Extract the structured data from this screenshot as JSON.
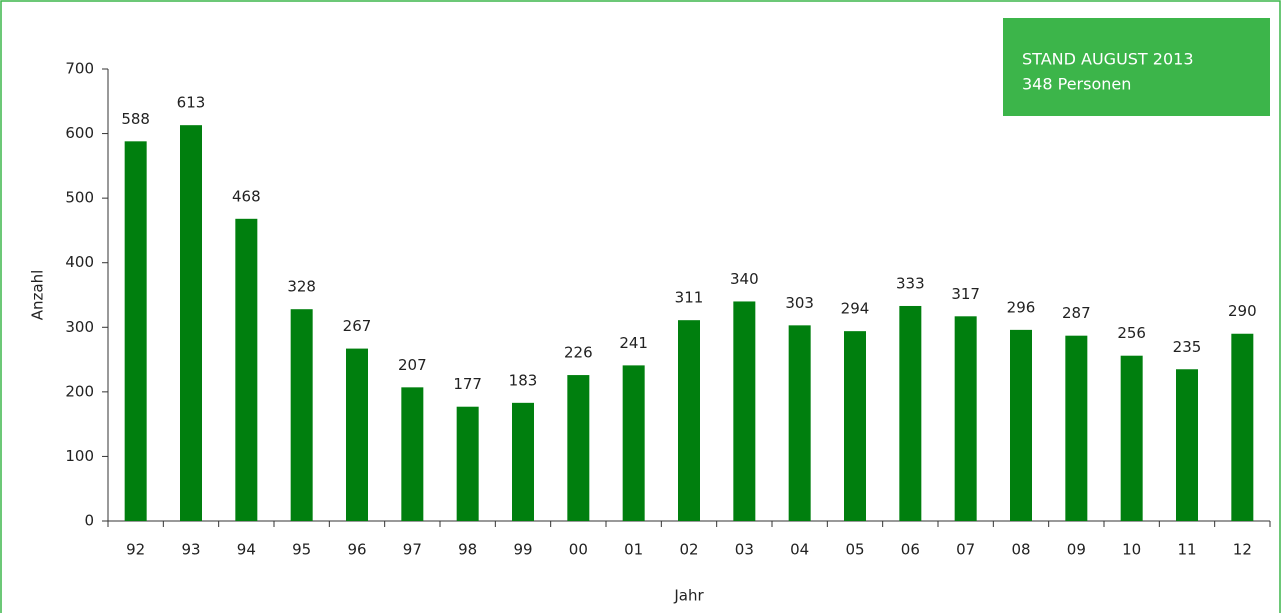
{
  "chart_data": {
    "type": "bar",
    "categories": [
      "92",
      "93",
      "94",
      "95",
      "96",
      "97",
      "98",
      "99",
      "00",
      "01",
      "02",
      "03",
      "04",
      "05",
      "06",
      "07",
      "08",
      "09",
      "10",
      "11",
      "12"
    ],
    "values": [
      588,
      613,
      468,
      328,
      267,
      207,
      177,
      183,
      226,
      241,
      311,
      340,
      303,
      294,
      333,
      317,
      296,
      287,
      256,
      235,
      290
    ],
    "color": "#007f0e",
    "ylim": [
      0,
      700
    ],
    "yticks": [
      0,
      100,
      200,
      300,
      400,
      500,
      600,
      700
    ],
    "y_label": "Anzahl",
    "x_label": "Jahr",
    "annotation": [
      "STAND AUGUST 2013",
      "348 Personen"
    ],
    "grid": false
  }
}
